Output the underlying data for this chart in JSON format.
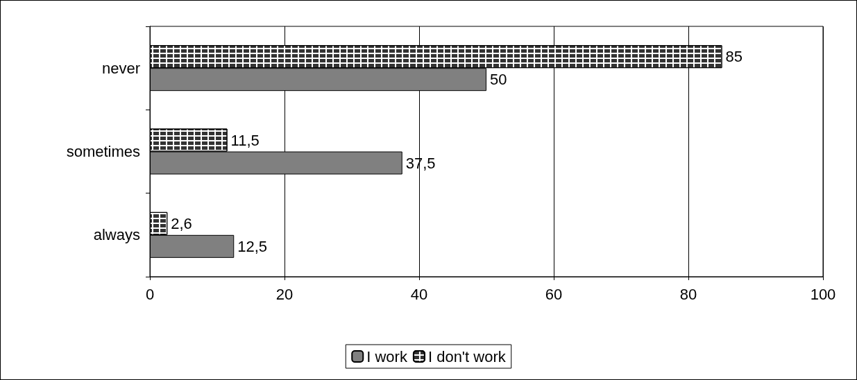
{
  "chart_data": {
    "type": "bar",
    "orientation": "horizontal",
    "categories": [
      "never",
      "sometimes",
      "always"
    ],
    "series": [
      {
        "name": "I work",
        "color": "#808080",
        "values": [
          50,
          37.5,
          12.5
        ],
        "value_labels": [
          "50",
          "37,5",
          "12,5"
        ]
      },
      {
        "name": "I don't work",
        "color": "#ffffff",
        "values": [
          85,
          11.5,
          2.6
        ],
        "value_labels": [
          "85",
          "11,5",
          "2,6"
        ]
      }
    ],
    "xlim": [
      0,
      100
    ],
    "xticks": [
      0,
      20,
      40,
      60,
      80,
      100
    ],
    "grid": "x",
    "legend": "bottom"
  }
}
